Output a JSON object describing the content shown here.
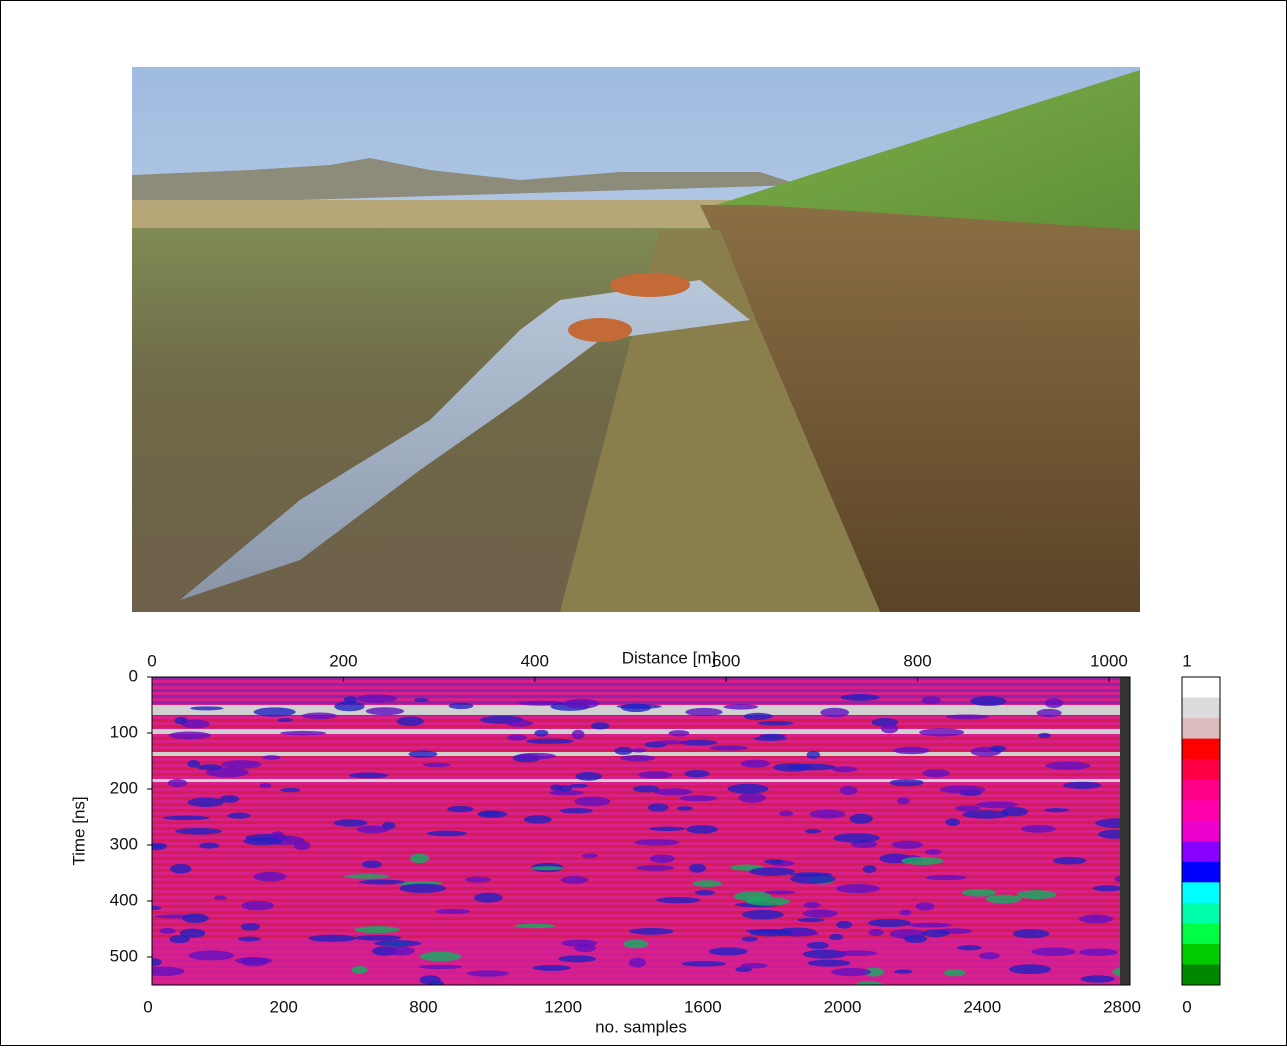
{
  "figure": {
    "radargram": {
      "top_axis": {
        "label": "Distance [m]",
        "xlim": [
          0,
          1022
        ],
        "xticks": [
          0,
          200,
          400,
          600,
          800,
          1000
        ]
      },
      "left_axis": {
        "label": "Time [ns]",
        "ylim": [
          0,
          550
        ],
        "yticks": [
          0,
          100,
          200,
          300,
          400,
          500
        ]
      },
      "bottom_axis": {
        "label": "no. samples",
        "tick_labels": [
          "0",
          "200",
          "800",
          "1200",
          "1600",
          "2000",
          "2400",
          "2800"
        ]
      },
      "colorbar": {
        "max_label": "1",
        "min_label": "0",
        "colors": [
          "#ffffff",
          "#dcdcdc",
          "#dcbcbc",
          "#ff0000",
          "#ff0044",
          "#ff0088",
          "#ff00aa",
          "#ee00cc",
          "#8800ff",
          "#0000ff",
          "#00ffff",
          "#00ffaa",
          "#00ff44",
          "#00cc00",
          "#008800"
        ]
      }
    }
  }
}
